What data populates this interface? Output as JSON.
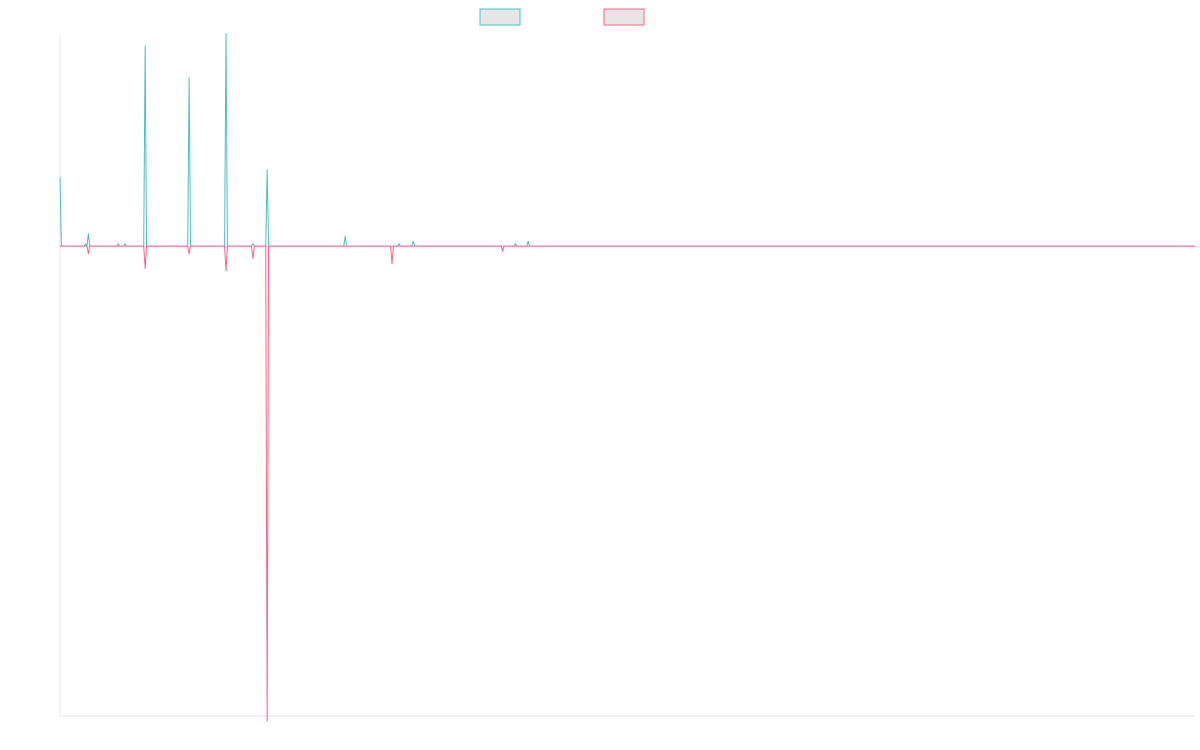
{
  "chart_data": {
    "type": "line",
    "x_count": 800,
    "ylim": [
      -1.9,
      0.85
    ],
    "grid": false,
    "legend": "top-center",
    "series": [
      {
        "name": "",
        "color": "#4bc0c0",
        "fill": "#e6e6e6",
        "points": [
          [
            0,
            0.28
          ],
          [
            1,
            0
          ],
          [
            17,
            0
          ],
          [
            18,
            0.01
          ],
          [
            19,
            0
          ],
          [
            20,
            0.05
          ],
          [
            21,
            0
          ],
          [
            40,
            0
          ],
          [
            41,
            0.01
          ],
          [
            42,
            0
          ],
          [
            45,
            0
          ],
          [
            46,
            0.01
          ],
          [
            47,
            0
          ],
          [
            59,
            0
          ],
          [
            60,
            0.81
          ],
          [
            61,
            0
          ],
          [
            90,
            0
          ],
          [
            91,
            0.68
          ],
          [
            92,
            0
          ],
          [
            116,
            0
          ],
          [
            117,
            0.86
          ],
          [
            118,
            0
          ],
          [
            135,
            0
          ],
          [
            136,
            0.01
          ],
          [
            137,
            0
          ],
          [
            145,
            0
          ],
          [
            146,
            0.31
          ],
          [
            147,
            0
          ],
          [
            200,
            0
          ],
          [
            201,
            0.04
          ],
          [
            202,
            0
          ],
          [
            238,
            0
          ],
          [
            239,
            0.01
          ],
          [
            240,
            0
          ],
          [
            248,
            0
          ],
          [
            249,
            0.02
          ],
          [
            250,
            0
          ],
          [
            320,
            0
          ],
          [
            321,
            0.01
          ],
          [
            322,
            0
          ],
          [
            329,
            0
          ],
          [
            330,
            0.02
          ],
          [
            331,
            0
          ],
          [
            800,
            0
          ]
        ]
      },
      {
        "name": "",
        "color": "#ff6384",
        "fill": "#e6e6e6",
        "points": [
          [
            0,
            0
          ],
          [
            19,
            0
          ],
          [
            20,
            -0.03
          ],
          [
            21,
            0
          ],
          [
            59,
            0
          ],
          [
            60,
            -0.09
          ],
          [
            61,
            0
          ],
          [
            90,
            0
          ],
          [
            91,
            -0.03
          ],
          [
            92,
            0
          ],
          [
            116,
            0
          ],
          [
            117,
            -0.1
          ],
          [
            118,
            0
          ],
          [
            135,
            0
          ],
          [
            136,
            -0.05
          ],
          [
            137,
            0
          ],
          [
            145,
            0
          ],
          [
            146,
            -1.92
          ],
          [
            147,
            0
          ],
          [
            233,
            0
          ],
          [
            234,
            -0.07
          ],
          [
            235,
            0
          ],
          [
            311,
            0
          ],
          [
            312,
            -0.02
          ],
          [
            313,
            0
          ],
          [
            800,
            0
          ]
        ]
      }
    ]
  }
}
